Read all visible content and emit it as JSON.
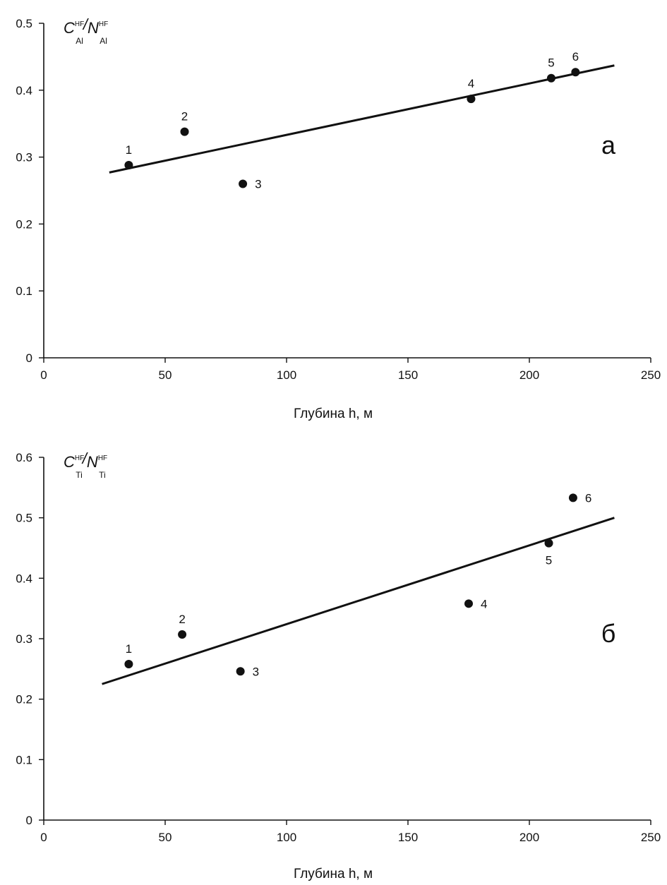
{
  "chart_data": [
    {
      "type": "scatter",
      "panel_letter": "а",
      "ylabel": {
        "main": "C",
        "sup": "HF",
        "sub": "Al",
        "slash": "/",
        "main2": "N",
        "sup2": "HF",
        "sub2": "Al"
      },
      "xlabel": "Глубина h, м",
      "xlim": [
        0,
        250
      ],
      "ylim": [
        0,
        0.5
      ],
      "xticks": [
        {
          "v": 0,
          "label": "0"
        },
        {
          "v": 50,
          "label": "50"
        },
        {
          "v": 100,
          "label": "100"
        },
        {
          "v": 150,
          "label": "150"
        },
        {
          "v": 200,
          "label": "200"
        },
        {
          "v": 250,
          "label": "250"
        }
      ],
      "yticks": [
        {
          "v": 0,
          "label": "0"
        },
        {
          "v": 0.1,
          "label": "0.1"
        },
        {
          "v": 0.2,
          "label": "0.2"
        },
        {
          "v": 0.3,
          "label": "0.3"
        },
        {
          "v": 0.4,
          "label": "0.4"
        },
        {
          "v": 0.5,
          "label": "0.5"
        }
      ],
      "points": [
        {
          "label": "1",
          "x": 35,
          "y": 0.288,
          "label_pos": "above"
        },
        {
          "label": "2",
          "x": 58,
          "y": 0.338,
          "label_pos": "above"
        },
        {
          "label": "3",
          "x": 82,
          "y": 0.26,
          "label_pos": "right"
        },
        {
          "label": "4",
          "x": 176,
          "y": 0.387,
          "label_pos": "above"
        },
        {
          "label": "5",
          "x": 209,
          "y": 0.418,
          "label_pos": "above"
        },
        {
          "label": "6",
          "x": 219,
          "y": 0.427,
          "label_pos": "above"
        }
      ],
      "fit_line": {
        "x": [
          27,
          235
        ],
        "y": [
          0.277,
          0.437
        ]
      }
    },
    {
      "type": "scatter",
      "panel_letter": "б",
      "ylabel": {
        "main": "C",
        "sup": "HF",
        "sub": "Ti",
        "slash": "/",
        "main2": "N",
        "sup2": "HF",
        "sub2": "Ti"
      },
      "xlabel": "Глубина h, м",
      "xlim": [
        0,
        250
      ],
      "ylim": [
        0,
        0.6
      ],
      "xticks": [
        {
          "v": 0,
          "label": "0"
        },
        {
          "v": 50,
          "label": "50"
        },
        {
          "v": 100,
          "label": "100"
        },
        {
          "v": 150,
          "label": "150"
        },
        {
          "v": 200,
          "label": "200"
        },
        {
          "v": 250,
          "label": "250"
        }
      ],
      "yticks": [
        {
          "v": 0,
          "label": "0"
        },
        {
          "v": 0.1,
          "label": "0.1"
        },
        {
          "v": 0.2,
          "label": "0.2"
        },
        {
          "v": 0.3,
          "label": "0.3"
        },
        {
          "v": 0.4,
          "label": "0.4"
        },
        {
          "v": 0.5,
          "label": "0.5"
        },
        {
          "v": 0.6,
          "label": "0.6"
        }
      ],
      "points": [
        {
          "label": "1",
          "x": 35,
          "y": 0.258,
          "label_pos": "above"
        },
        {
          "label": "2",
          "x": 57,
          "y": 0.307,
          "label_pos": "above"
        },
        {
          "label": "3",
          "x": 81,
          "y": 0.246,
          "label_pos": "right"
        },
        {
          "label": "4",
          "x": 175,
          "y": 0.358,
          "label_pos": "right"
        },
        {
          "label": "5",
          "x": 208,
          "y": 0.458,
          "label_pos": "below"
        },
        {
          "label": "6",
          "x": 218,
          "y": 0.533,
          "label_pos": "right"
        }
      ],
      "fit_line": {
        "x": [
          24,
          235
        ],
        "y": [
          0.225,
          0.5
        ]
      }
    }
  ]
}
